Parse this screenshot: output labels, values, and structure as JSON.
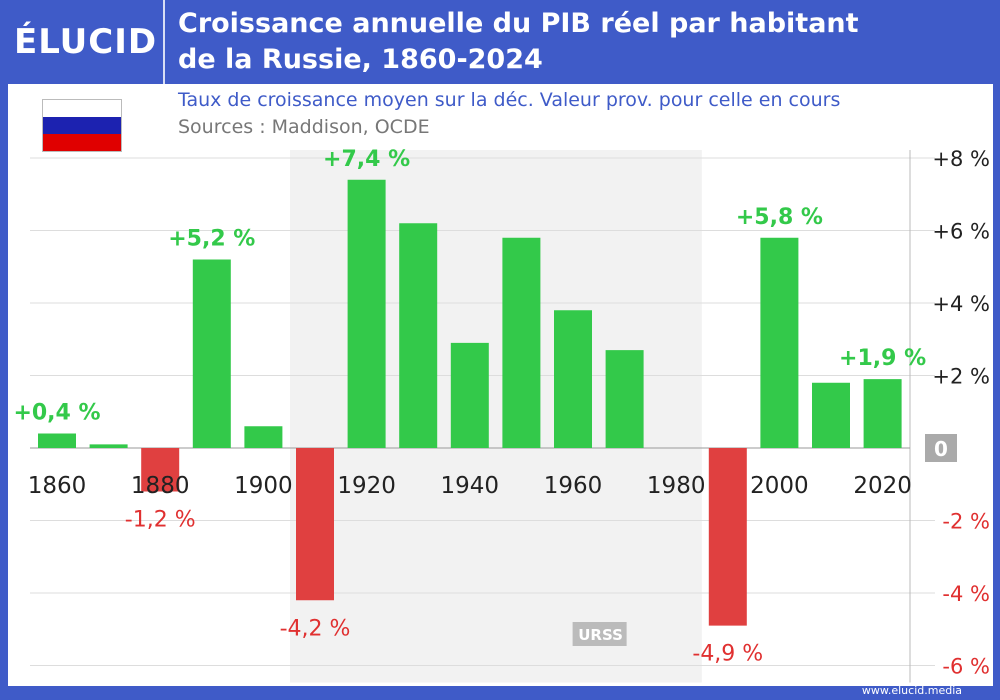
{
  "header": {
    "logo": "ÉLUCID",
    "title_line1": "Croissance annuelle du PIB réel par habitant",
    "title_line2": "de la Russie, 1860-2024"
  },
  "subtitle": "Taux de croissance moyen sur la déc. Valeur prov. pour celle en cours",
  "sources": "Sources : Maddison, OCDE",
  "footer": "www.elucid.media",
  "flag_colors": [
    "#ffffff",
    "#1c22b0",
    "#e00000"
  ],
  "colors": {
    "positive": "#33c94a",
    "negative": "#e04040",
    "label_positive": "#33c94a",
    "label_negative": "#e03030",
    "brand": "#3f5bc8",
    "shade": "#f2f2f2"
  },
  "chart_data": {
    "type": "bar",
    "categories": [
      1860,
      1870,
      1880,
      1890,
      1900,
      1910,
      1920,
      1930,
      1940,
      1950,
      1960,
      1970,
      1980,
      1990,
      2000,
      2010,
      2020
    ],
    "values": [
      0.4,
      0.1,
      -1.2,
      5.2,
      0.6,
      -4.2,
      7.4,
      6.2,
      2.9,
      5.8,
      3.8,
      2.7,
      null,
      -4.9,
      5.8,
      1.8,
      1.9
    ],
    "data_labels": [
      {
        "year": 1860,
        "text": "+0,4 %"
      },
      {
        "year": 1880,
        "text": "-1,2 %"
      },
      {
        "year": 1890,
        "text": "+5,2 %"
      },
      {
        "year": 1910,
        "text": "-4,2 %"
      },
      {
        "year": 1920,
        "text": "+7,4 %"
      },
      {
        "year": 1990,
        "text": "-4,9 %"
      },
      {
        "year": 2000,
        "text": "+5,8 %"
      },
      {
        "year": 2020,
        "text": "+1,9 %"
      }
    ],
    "x_tick_labels": [
      "1860",
      "1880",
      "1900",
      "1920",
      "1940",
      "1960",
      "1980",
      "2000",
      "2020"
    ],
    "y_ticks": [
      {
        "v": 8,
        "t": "+8 %"
      },
      {
        "v": 6,
        "t": "+6 %"
      },
      {
        "v": 4,
        "t": "+4 %"
      },
      {
        "v": 2,
        "t": "+2 %"
      },
      {
        "v": 0,
        "t": "0"
      },
      {
        "v": -2,
        "t": "-2 %"
      },
      {
        "v": -4,
        "t": "-4 %"
      },
      {
        "v": -6,
        "t": "-6 %"
      }
    ],
    "ylim": [
      -6,
      8
    ],
    "y_axis_side": "right",
    "grid": true,
    "shaded_period": {
      "from": 1910,
      "to": 1990,
      "label": "URSS"
    }
  }
}
